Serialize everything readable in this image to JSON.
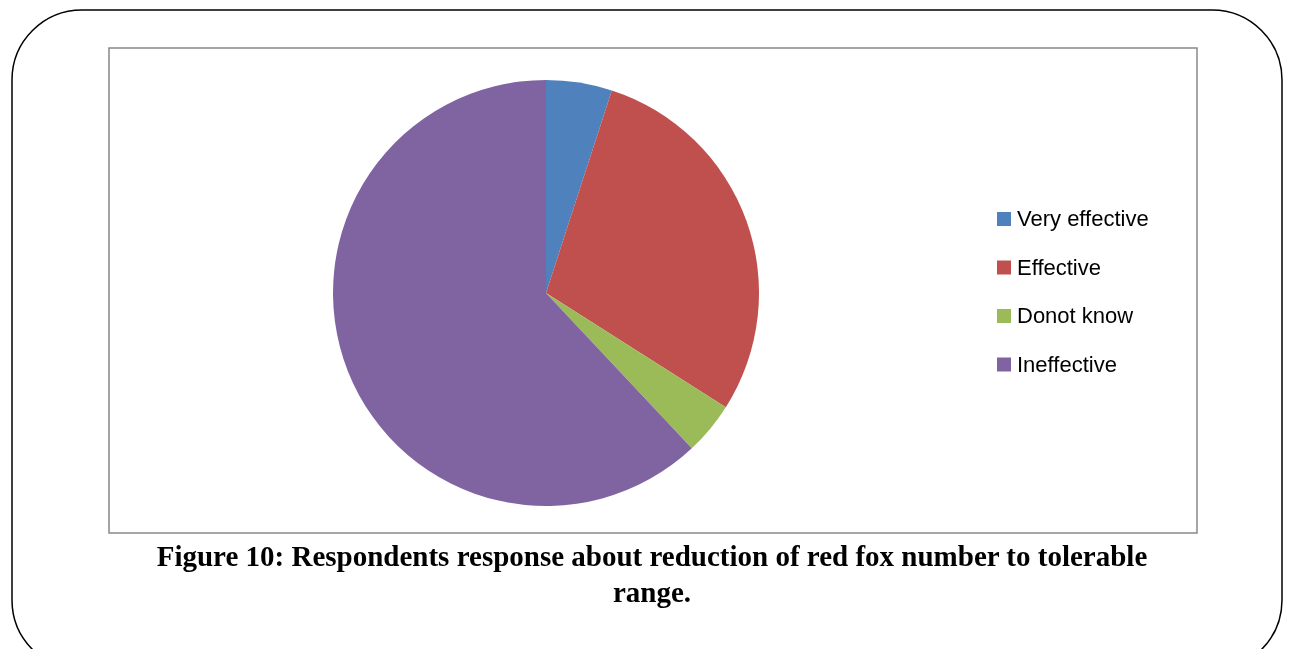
{
  "chart_data": {
    "type": "pie",
    "title": "Figure 10: Respondents response about reduction of red fox number to tolerable range.",
    "categories": [
      "Very effective",
      "Effective",
      "Donot know",
      "Ineffective"
    ],
    "values": [
      5,
      29,
      4,
      62
    ],
    "colors": [
      "#4f81bd",
      "#c0504d",
      "#9bbb59",
      "#8064a2"
    ],
    "legend": "right"
  }
}
